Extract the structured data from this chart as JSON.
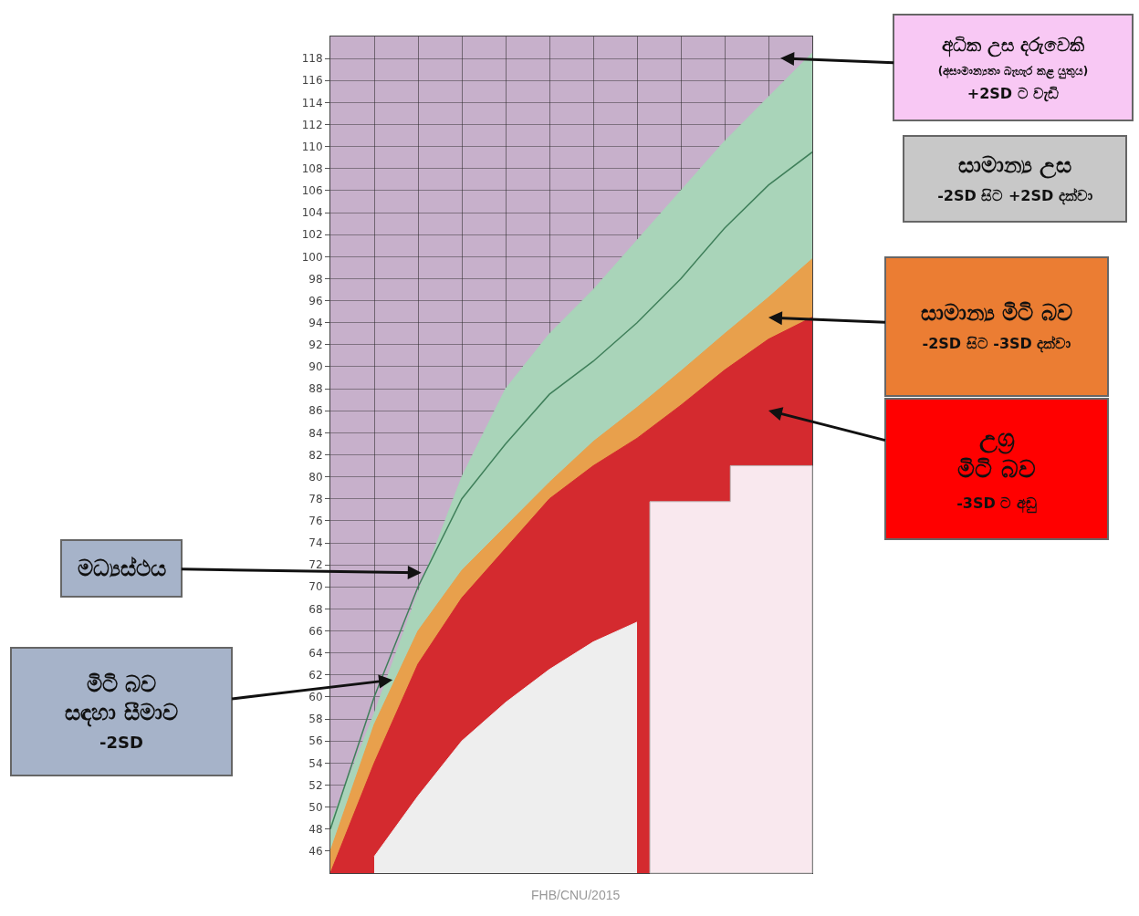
{
  "chart_data": {
    "type": "area",
    "categories": [
      null,
      null,
      null,
      null,
      null,
      null,
      null,
      null,
      null,
      null,
      null,
      null
    ],
    "series": [
      {
        "type": "area",
        "color": "#a9d4b9",
        "values": [
          48.5,
          58.5,
          69.5,
          80,
          88,
          93,
          97,
          101.5,
          106,
          110.5,
          114.5,
          118.5
        ]
      },
      {
        "type": "area",
        "color": "#e8a04c",
        "values": [
          46,
          57.5,
          66,
          71.5,
          75.5,
          79.5,
          83.2,
          86.3,
          89.6,
          93,
          96.3,
          99.8
        ]
      },
      {
        "type": "area",
        "color": "#d42a2f",
        "values": [
          44,
          54,
          63,
          69,
          73.5,
          78,
          81,
          83.5,
          86.5,
          89.7,
          92.5,
          94.5
        ]
      },
      {
        "type": "area",
        "color": "#eeeeee",
        "values": [
          null,
          45.5,
          51,
          56,
          59.5,
          62.5,
          65,
          66.8,
          null,
          null,
          null,
          null
        ]
      },
      {
        "type": "line",
        "color": "#3f7f5a",
        "values": [
          48,
          60,
          70,
          78,
          83,
          87.5,
          90.5,
          94,
          98,
          102.6,
          106.5,
          109.5
        ]
      }
    ],
    "ylim": [
      44,
      120
    ],
    "yticks": [
      46,
      48,
      50,
      52,
      54,
      56,
      58,
      60,
      62,
      64,
      66,
      68,
      70,
      72,
      74,
      76,
      78,
      80,
      82,
      84,
      86,
      88,
      90,
      92,
      94,
      96,
      98,
      100,
      102,
      104,
      106,
      108,
      110,
      112,
      114,
      116,
      118
    ],
    "grid": true,
    "annotations": [
      "අධික උස දරුවෙකි\n(අසාමාන්‍යතා බැහැර කළ යුතුය)\n+2SD ට වැඩි",
      "සාමාන්‍ය උස\n-2SD සිට +2SD දක්වා",
      "සාමාන්‍ය මිටි බව\n-2SD සිට -3SD දක්වා",
      "උග්‍ර\nමිටි බව\n-3SD ට අඩු",
      "මධ්‍යස්ථය",
      "මිටි බව\nසඳහා සීමාව\n-2SD",
      "FHB/CNU/2015"
    ]
  }
}
